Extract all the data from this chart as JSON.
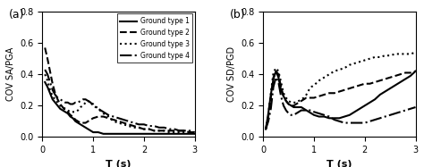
{
  "title_a": "(a)",
  "title_b": "(b)",
  "ylabel_a": "COV SA/PGA",
  "ylabel_b": "COV SD/PGD",
  "xlabel": "T (s)",
  "xlim": [
    0,
    3
  ],
  "ylim": [
    0,
    0.8
  ],
  "yticks": [
    0,
    0.2,
    0.4,
    0.6,
    0.8
  ],
  "xticks": [
    0,
    1,
    2,
    3
  ],
  "legend_labels": [
    "Ground type 1",
    "Ground type 2",
    "Ground type 3",
    "Ground type 4"
  ],
  "line_styles": [
    "-",
    "--",
    ":",
    "-."
  ],
  "line_width": 1.5,
  "T_a": [
    0.05,
    0.1,
    0.15,
    0.2,
    0.25,
    0.3,
    0.35,
    0.4,
    0.45,
    0.5,
    0.55,
    0.6,
    0.65,
    0.7,
    0.75,
    0.8,
    0.85,
    0.9,
    0.95,
    1.0,
    1.1,
    1.2,
    1.3,
    1.4,
    1.5,
    1.6,
    1.7,
    1.8,
    1.9,
    2.0,
    2.1,
    2.2,
    2.3,
    2.4,
    2.5,
    2.6,
    2.7,
    2.8,
    2.9,
    3.0
  ],
  "cov_a_gt1": [
    0.35,
    0.32,
    0.28,
    0.24,
    0.22,
    0.2,
    0.18,
    0.17,
    0.16,
    0.15,
    0.13,
    0.12,
    0.1,
    0.09,
    0.08,
    0.07,
    0.06,
    0.05,
    0.04,
    0.03,
    0.03,
    0.02,
    0.02,
    0.02,
    0.02,
    0.02,
    0.02,
    0.02,
    0.02,
    0.02,
    0.02,
    0.02,
    0.02,
    0.02,
    0.02,
    0.02,
    0.02,
    0.02,
    0.02,
    0.02
  ],
  "cov_a_gt2": [
    0.57,
    0.5,
    0.42,
    0.34,
    0.28,
    0.24,
    0.21,
    0.19,
    0.17,
    0.16,
    0.14,
    0.13,
    0.11,
    0.1,
    0.09,
    0.09,
    0.09,
    0.1,
    0.11,
    0.12,
    0.13,
    0.13,
    0.12,
    0.11,
    0.1,
    0.09,
    0.08,
    0.07,
    0.06,
    0.05,
    0.05,
    0.04,
    0.04,
    0.04,
    0.04,
    0.04,
    0.04,
    0.04,
    0.03,
    0.03
  ],
  "cov_a_gt3": [
    0.4,
    0.36,
    0.3,
    0.26,
    0.24,
    0.22,
    0.2,
    0.19,
    0.18,
    0.17,
    0.16,
    0.16,
    0.16,
    0.17,
    0.19,
    0.2,
    0.22,
    0.23,
    0.22,
    0.21,
    0.18,
    0.15,
    0.13,
    0.1,
    0.09,
    0.08,
    0.07,
    0.06,
    0.06,
    0.05,
    0.05,
    0.04,
    0.04,
    0.04,
    0.03,
    0.03,
    0.03,
    0.03,
    0.03,
    0.03
  ],
  "cov_a_gt4": [
    0.43,
    0.4,
    0.35,
    0.3,
    0.27,
    0.25,
    0.24,
    0.23,
    0.22,
    0.22,
    0.21,
    0.21,
    0.22,
    0.22,
    0.23,
    0.24,
    0.24,
    0.23,
    0.22,
    0.2,
    0.18,
    0.16,
    0.14,
    0.13,
    0.12,
    0.11,
    0.1,
    0.09,
    0.08,
    0.08,
    0.07,
    0.07,
    0.06,
    0.06,
    0.05,
    0.05,
    0.04,
    0.04,
    0.04,
    0.03
  ],
  "T_b": [
    0.05,
    0.1,
    0.15,
    0.2,
    0.25,
    0.3,
    0.35,
    0.4,
    0.45,
    0.5,
    0.55,
    0.6,
    0.65,
    0.7,
    0.75,
    0.8,
    0.85,
    0.9,
    0.95,
    1.0,
    1.1,
    1.2,
    1.3,
    1.4,
    1.5,
    1.6,
    1.7,
    1.8,
    1.9,
    2.0,
    2.1,
    2.2,
    2.3,
    2.4,
    2.5,
    2.6,
    2.7,
    2.8,
    2.9,
    3.0
  ],
  "cov_b_gt1": [
    0.05,
    0.15,
    0.27,
    0.37,
    0.42,
    0.38,
    0.3,
    0.26,
    0.23,
    0.21,
    0.2,
    0.19,
    0.19,
    0.19,
    0.19,
    0.18,
    0.17,
    0.16,
    0.15,
    0.14,
    0.13,
    0.13,
    0.12,
    0.12,
    0.12,
    0.13,
    0.14,
    0.16,
    0.18,
    0.2,
    0.22,
    0.24,
    0.27,
    0.29,
    0.31,
    0.33,
    0.35,
    0.37,
    0.39,
    0.42
  ],
  "cov_b_gt2": [
    0.05,
    0.13,
    0.25,
    0.38,
    0.42,
    0.4,
    0.32,
    0.26,
    0.23,
    0.21,
    0.2,
    0.2,
    0.21,
    0.22,
    0.23,
    0.24,
    0.25,
    0.25,
    0.25,
    0.25,
    0.26,
    0.27,
    0.28,
    0.28,
    0.29,
    0.3,
    0.31,
    0.32,
    0.33,
    0.34,
    0.34,
    0.35,
    0.36,
    0.37,
    0.38,
    0.39,
    0.4,
    0.41,
    0.41,
    0.42
  ],
  "cov_b_gt3": [
    0.05,
    0.14,
    0.28,
    0.41,
    0.44,
    0.42,
    0.35,
    0.28,
    0.25,
    0.23,
    0.22,
    0.22,
    0.22,
    0.23,
    0.24,
    0.25,
    0.27,
    0.3,
    0.32,
    0.33,
    0.36,
    0.38,
    0.4,
    0.42,
    0.43,
    0.44,
    0.46,
    0.47,
    0.48,
    0.49,
    0.5,
    0.51,
    0.51,
    0.52,
    0.52,
    0.53,
    0.53,
    0.53,
    0.53,
    0.54
  ],
  "cov_b_gt4": [
    0.05,
    0.1,
    0.18,
    0.32,
    0.38,
    0.35,
    0.26,
    0.2,
    0.17,
    0.15,
    0.14,
    0.14,
    0.15,
    0.16,
    0.17,
    0.17,
    0.17,
    0.17,
    0.17,
    0.16,
    0.15,
    0.14,
    0.13,
    0.11,
    0.1,
    0.09,
    0.09,
    0.09,
    0.09,
    0.09,
    0.1,
    0.11,
    0.12,
    0.13,
    0.14,
    0.15,
    0.16,
    0.17,
    0.18,
    0.19
  ]
}
